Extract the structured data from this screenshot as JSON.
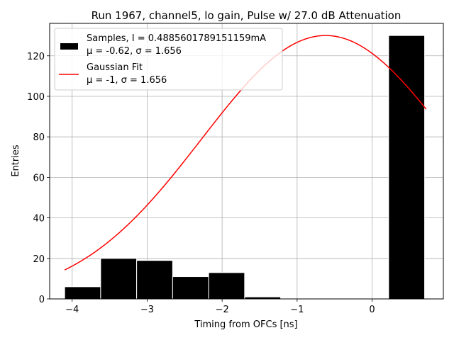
{
  "chart_data": {
    "type": "bar",
    "title": "Run 1967, channel5, lo gain, Pulse w/ 27.0 dB Attenuation",
    "xlabel": "Timing from OFCs [ns]",
    "ylabel": "Entries",
    "xlim": [
      -4.3,
      0.95
    ],
    "ylim": [
      0,
      136
    ],
    "grid": true,
    "xticks": [
      -4,
      -3,
      -2,
      -1,
      0
    ],
    "xtick_labels": [
      "−4",
      "−3",
      "−2",
      "−1",
      "0"
    ],
    "yticks": [
      0,
      20,
      40,
      60,
      80,
      100,
      120
    ],
    "yticks_labels": [
      "0",
      "20",
      "40",
      "60",
      "80",
      "100",
      "120"
    ],
    "histogram": {
      "name": "Samples",
      "color": "#000000",
      "bins": [
        {
          "x0": -4.1,
          "x1": -3.62,
          "value": 6
        },
        {
          "x0": -3.62,
          "x1": -3.14,
          "value": 20
        },
        {
          "x0": -3.14,
          "x1": -2.66,
          "value": 19
        },
        {
          "x0": -2.66,
          "x1": -2.18,
          "value": 11
        },
        {
          "x0": -2.18,
          "x1": -1.7,
          "value": 13
        },
        {
          "x0": -1.7,
          "x1": -1.22,
          "value": 1
        },
        {
          "x0": -1.22,
          "x1": -0.74,
          "value": 0
        },
        {
          "x0": -0.74,
          "x1": -0.26,
          "value": 0
        },
        {
          "x0": -0.26,
          "x1": 0.22,
          "value": 0
        },
        {
          "x0": 0.22,
          "x1": 0.7,
          "value": 130
        }
      ]
    },
    "fit": {
      "name": "Gaussian Fit",
      "color": "#ff0000",
      "amplitude": 130,
      "mean": -0.62,
      "sigma": 1.656,
      "x_range": [
        -4.1,
        0.72
      ]
    },
    "legend": {
      "position": "top-left",
      "entries": [
        {
          "line1": "Samples, I = 0.4885601789151159mA",
          "line2": "μ = -0.62, σ = 1.656"
        },
        {
          "line1": "Gaussian Fit",
          "line2": "μ = -1, σ = 1.656"
        }
      ]
    }
  }
}
